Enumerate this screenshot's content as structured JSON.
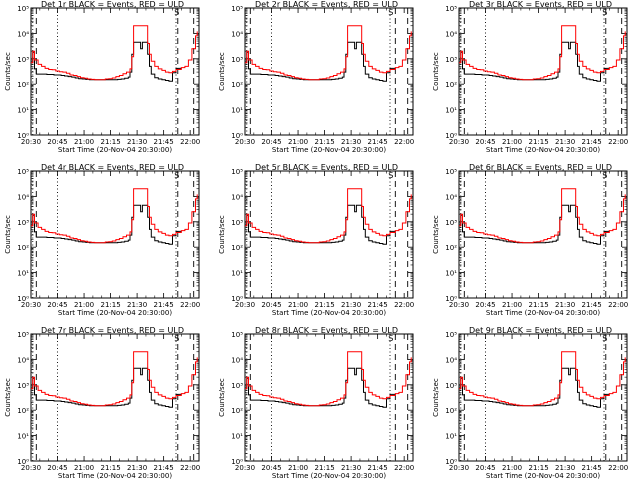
{
  "figure": {
    "xlabel": "Start Time (20-Nov-04 20:30:00)",
    "ylabel": "Counts/sec",
    "x_ticks": [
      "20:30",
      "20:45",
      "21:00",
      "21:15",
      "21:30",
      "21:45",
      "22:00"
    ],
    "y_ticks": [
      "10⁰",
      "10¹",
      "10²",
      "10³",
      "10⁴",
      "10⁵"
    ],
    "annotation": "S",
    "colors": {
      "events": "#000000",
      "uld": "#ff0000",
      "background": "#ffffff"
    }
  },
  "chart_data": [
    {
      "type": "line",
      "title": "Det 1r BLACK = Events, RED = ULD",
      "xlim": [
        "20:30",
        "22:05"
      ],
      "ylim": [
        1,
        100000
      ],
      "y_scale": "log",
      "series": [
        {
          "name": "Events",
          "color": "#000000"
        },
        {
          "name": "ULD",
          "color": "#ff0000"
        }
      ],
      "vlines": [
        {
          "x": "20:31",
          "style": "dotted"
        },
        {
          "x": "20:33",
          "style": "dashed"
        },
        {
          "x": "20:45",
          "style": "dotted"
        },
        {
          "x": "21:52",
          "style": "dotted"
        },
        {
          "x": "21:53",
          "style": "dashed"
        },
        {
          "x": "22:02",
          "style": "dashed"
        }
      ]
    },
    {
      "type": "line",
      "title": "Det 2r BLACK = Events, RED = ULD",
      "xlim": [
        "20:30",
        "22:05"
      ],
      "ylim": [
        1,
        100000
      ],
      "y_scale": "log",
      "series": [
        {
          "name": "Events",
          "color": "#000000"
        },
        {
          "name": "ULD",
          "color": "#ff0000"
        }
      ],
      "vlines": [
        {
          "x": "20:31",
          "style": "dotted"
        },
        {
          "x": "20:33",
          "style": "dashed"
        },
        {
          "x": "20:45",
          "style": "dotted"
        },
        {
          "x": "21:52",
          "style": "dotted"
        },
        {
          "x": "21:55",
          "style": "dashed"
        },
        {
          "x": "22:02",
          "style": "dashed"
        }
      ]
    },
    {
      "type": "line",
      "title": "Det 3r BLACK = Events, RED = ULD",
      "xlim": [
        "20:30",
        "22:05"
      ],
      "ylim": [
        1,
        100000
      ],
      "y_scale": "log",
      "series": [
        {
          "name": "Events",
          "color": "#000000"
        },
        {
          "name": "ULD",
          "color": "#ff0000"
        }
      ],
      "vlines": [
        {
          "x": "20:31",
          "style": "dotted"
        },
        {
          "x": "20:33",
          "style": "dashed"
        },
        {
          "x": "20:45",
          "style": "dotted"
        },
        {
          "x": "21:52",
          "style": "dotted"
        },
        {
          "x": "21:53",
          "style": "dashed"
        },
        {
          "x": "22:02",
          "style": "dashed"
        }
      ]
    },
    {
      "type": "line",
      "title": "Det 4r BLACK = Events, RED = ULD",
      "xlim": [
        "20:30",
        "22:05"
      ],
      "ylim": [
        1,
        100000
      ],
      "y_scale": "log",
      "series": [
        {
          "name": "Events",
          "color": "#000000"
        },
        {
          "name": "ULD",
          "color": "#ff0000"
        }
      ],
      "vlines": [
        {
          "x": "20:31",
          "style": "dotted"
        },
        {
          "x": "20:33",
          "style": "dashed"
        },
        {
          "x": "20:45",
          "style": "dotted"
        },
        {
          "x": "21:52",
          "style": "dotted"
        },
        {
          "x": "21:53",
          "style": "dashed"
        },
        {
          "x": "22:02",
          "style": "dashed"
        }
      ]
    },
    {
      "type": "line",
      "title": "Det 5r BLACK = Events, RED = ULD",
      "xlim": [
        "20:30",
        "22:05"
      ],
      "ylim": [
        1,
        100000
      ],
      "y_scale": "log",
      "series": [
        {
          "name": "Events",
          "color": "#000000"
        },
        {
          "name": "ULD",
          "color": "#ff0000"
        }
      ],
      "vlines": [
        {
          "x": "20:31",
          "style": "dotted"
        },
        {
          "x": "20:33",
          "style": "dashed"
        },
        {
          "x": "20:45",
          "style": "dotted"
        },
        {
          "x": "21:52",
          "style": "dotted"
        },
        {
          "x": "21:55",
          "style": "dashed"
        },
        {
          "x": "22:02",
          "style": "dashed"
        }
      ]
    },
    {
      "type": "line",
      "title": "Det 6r BLACK = Events, RED = ULD",
      "xlim": [
        "20:30",
        "22:05"
      ],
      "ylim": [
        1,
        100000
      ],
      "y_scale": "log",
      "series": [
        {
          "name": "Events",
          "color": "#000000"
        },
        {
          "name": "ULD",
          "color": "#ff0000"
        }
      ],
      "vlines": [
        {
          "x": "20:31",
          "style": "dotted"
        },
        {
          "x": "20:33",
          "style": "dashed"
        },
        {
          "x": "20:45",
          "style": "dotted"
        },
        {
          "x": "21:52",
          "style": "dotted"
        },
        {
          "x": "21:53",
          "style": "dashed"
        },
        {
          "x": "22:02",
          "style": "dashed"
        }
      ]
    },
    {
      "type": "line",
      "title": "Det 7r BLACK = Events, RED = ULD",
      "xlim": [
        "20:30",
        "22:05"
      ],
      "ylim": [
        1,
        100000
      ],
      "y_scale": "log",
      "series": [
        {
          "name": "Events",
          "color": "#000000"
        },
        {
          "name": "ULD",
          "color": "#ff0000"
        }
      ],
      "vlines": [
        {
          "x": "20:31",
          "style": "dotted"
        },
        {
          "x": "20:33",
          "style": "dashed"
        },
        {
          "x": "20:45",
          "style": "dotted"
        },
        {
          "x": "21:52",
          "style": "dotted"
        },
        {
          "x": "21:53",
          "style": "dashed"
        },
        {
          "x": "22:02",
          "style": "dashed"
        }
      ]
    },
    {
      "type": "line",
      "title": "Det 8r BLACK = Events, RED = ULD",
      "xlim": [
        "20:30",
        "22:05"
      ],
      "ylim": [
        1,
        100000
      ],
      "y_scale": "log",
      "series": [
        {
          "name": "Events",
          "color": "#000000"
        },
        {
          "name": "ULD",
          "color": "#ff0000"
        }
      ],
      "vlines": [
        {
          "x": "20:31",
          "style": "dotted"
        },
        {
          "x": "20:33",
          "style": "dashed"
        },
        {
          "x": "20:45",
          "style": "dotted"
        },
        {
          "x": "21:52",
          "style": "dotted"
        },
        {
          "x": "21:55",
          "style": "dashed"
        },
        {
          "x": "22:02",
          "style": "dashed"
        }
      ]
    },
    {
      "type": "line",
      "title": "Det 9r BLACK = Events, RED = ULD",
      "xlim": [
        "20:30",
        "22:05"
      ],
      "ylim": [
        1,
        100000
      ],
      "y_scale": "log",
      "series": [
        {
          "name": "Events",
          "color": "#000000"
        },
        {
          "name": "ULD",
          "color": "#ff0000"
        }
      ],
      "vlines": [
        {
          "x": "20:31",
          "style": "dotted"
        },
        {
          "x": "20:33",
          "style": "dashed"
        },
        {
          "x": "20:45",
          "style": "dotted"
        },
        {
          "x": "21:52",
          "style": "dotted"
        },
        {
          "x": "21:53",
          "style": "dashed"
        },
        {
          "x": "22:02",
          "style": "dashed"
        }
      ]
    }
  ],
  "curves": {
    "uld": [
      [
        "20:30",
        700
      ],
      [
        "20:31",
        2000
      ],
      [
        "20:32",
        900
      ],
      [
        "20:34",
        600
      ],
      [
        "20:36",
        500
      ],
      [
        "20:38",
        420
      ],
      [
        "20:40",
        380
      ],
      [
        "20:42",
        370
      ],
      [
        "20:44",
        330
      ],
      [
        "20:46",
        310
      ],
      [
        "20:48",
        300
      ],
      [
        "20:50",
        270
      ],
      [
        "20:52",
        230
      ],
      [
        "20:54",
        220
      ],
      [
        "20:56",
        200
      ],
      [
        "20:58",
        180
      ],
      [
        "21:00",
        170
      ],
      [
        "21:02",
        160
      ],
      [
        "21:04",
        155
      ],
      [
        "21:06",
        150
      ],
      [
        "21:08",
        150
      ],
      [
        "21:10",
        150
      ],
      [
        "21:12",
        160
      ],
      [
        "21:14",
        165
      ],
      [
        "21:16",
        175
      ],
      [
        "21:18",
        200
      ],
      [
        "21:20",
        220
      ],
      [
        "21:22",
        260
      ],
      [
        "21:24",
        300
      ],
      [
        "21:26",
        400
      ],
      [
        "21:27",
        1200
      ],
      [
        "21:28",
        20000
      ],
      [
        "21:35",
        20000
      ],
      [
        "21:36",
        4000
      ],
      [
        "21:37",
        1500
      ],
      [
        "21:38",
        800
      ],
      [
        "21:40",
        500
      ],
      [
        "21:42",
        400
      ],
      [
        "21:44",
        350
      ],
      [
        "21:46",
        300
      ],
      [
        "21:48",
        280
      ],
      [
        "21:50",
        320
      ],
      [
        "21:52",
        380
      ],
      [
        "21:55",
        450
      ],
      [
        "21:57",
        500
      ],
      [
        "21:59",
        900
      ],
      [
        "22:01",
        2500
      ],
      [
        "22:03",
        8000
      ],
      [
        "22:04",
        12000
      ]
    ],
    "events": [
      [
        "20:30",
        700
      ],
      [
        "20:31",
        1800
      ],
      [
        "20:32",
        400
      ],
      [
        "20:33",
        250
      ],
      [
        "20:35",
        250
      ],
      [
        "20:37",
        250
      ],
      [
        "20:39",
        240
      ],
      [
        "20:41",
        240
      ],
      [
        "20:43",
        230
      ],
      [
        "20:45",
        230
      ],
      [
        "20:47",
        220
      ],
      [
        "20:49",
        210
      ],
      [
        "20:51",
        200
      ],
      [
        "20:53",
        190
      ],
      [
        "20:55",
        175
      ],
      [
        "20:57",
        165
      ],
      [
        "20:59",
        160
      ],
      [
        "21:01",
        155
      ],
      [
        "21:03",
        150
      ],
      [
        "21:05",
        150
      ],
      [
        "21:07",
        150
      ],
      [
        "21:09",
        150
      ],
      [
        "21:11",
        150
      ],
      [
        "21:13",
        150
      ],
      [
        "21:15",
        150
      ],
      [
        "21:17",
        150
      ],
      [
        "21:19",
        155
      ],
      [
        "21:21",
        160
      ],
      [
        "21:23",
        170
      ],
      [
        "21:25",
        190
      ],
      [
        "21:26",
        300
      ],
      [
        "21:27",
        1500
      ],
      [
        "21:28",
        4500
      ],
      [
        "21:31",
        4500
      ],
      [
        "21:32",
        2500
      ],
      [
        "21:33",
        4500
      ],
      [
        "21:35",
        4500
      ],
      [
        "21:36",
        1500
      ],
      [
        "21:37",
        500
      ],
      [
        "21:38",
        250
      ],
      [
        "21:40",
        180
      ],
      [
        "21:42",
        160
      ],
      [
        "21:44",
        150
      ],
      [
        "21:46",
        140
      ],
      [
        "21:48",
        130
      ],
      [
        "21:50",
        280
      ],
      [
        "21:52",
        420
      ],
      [
        "21:55",
        450
      ]
    ]
  }
}
